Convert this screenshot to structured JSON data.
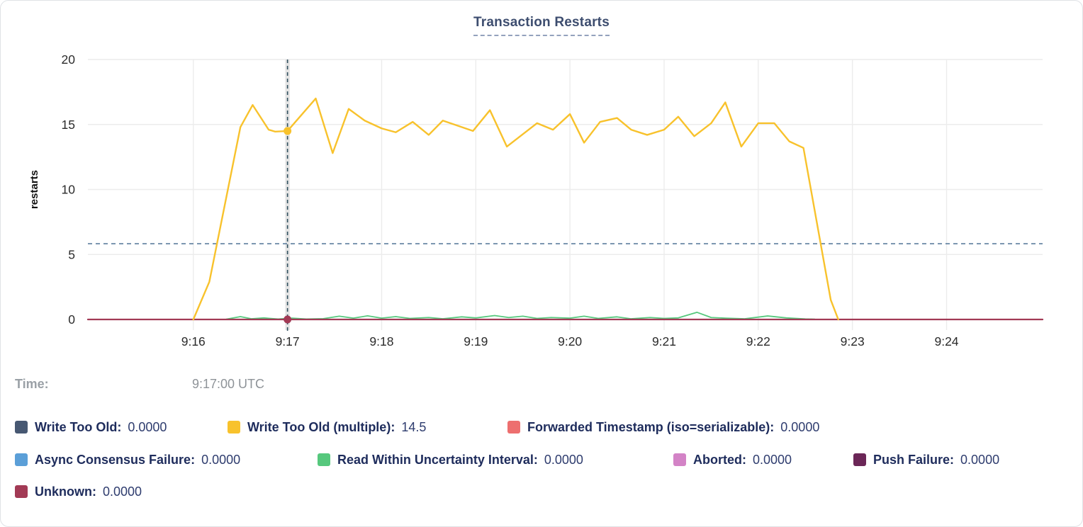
{
  "title": "Transaction Restarts",
  "tooltip": {
    "time_label": "Time:",
    "time_value": "9:17:00 UTC"
  },
  "chart_data": {
    "type": "line",
    "title": "Transaction Restarts",
    "ylabel": "restarts",
    "ylim": [
      0,
      20
    ],
    "yticks": [
      0,
      5,
      10,
      15,
      20
    ],
    "x_domain_minutes": [
      -1.12,
      9.02
    ],
    "xticks": [
      {
        "t": 0,
        "label": "9:16"
      },
      {
        "t": 1,
        "label": "9:17"
      },
      {
        "t": 2,
        "label": "9:18"
      },
      {
        "t": 3,
        "label": "9:19"
      },
      {
        "t": 4,
        "label": "9:20"
      },
      {
        "t": 5,
        "label": "9:21"
      },
      {
        "t": 6,
        "label": "9:22"
      },
      {
        "t": 7,
        "label": "9:23"
      },
      {
        "t": 8,
        "label": "9:24"
      }
    ],
    "avg_line_value": 5.83,
    "crosshair": {
      "t": 1.0,
      "time": "9:17:00 UTC",
      "hover_series": "Write Too Old (multiple)",
      "hover_value": 14.5
    },
    "grid": true,
    "series": [
      {
        "name": "Write Too Old",
        "color": "#475872",
        "width": 1.6,
        "points": [
          [
            -1.12,
            0
          ],
          [
            9.02,
            0
          ]
        ]
      },
      {
        "name": "Forwarded Timestamp (iso=serializable)",
        "color": "#ed6f6f",
        "width": 2.0,
        "points": [
          [
            -1.12,
            0
          ],
          [
            9.02,
            0
          ]
        ]
      },
      {
        "name": "Async Consensus Failure",
        "color": "#5b9fd8",
        "width": 1.6,
        "points": [
          [
            -1.12,
            0
          ],
          [
            9.02,
            0
          ]
        ]
      },
      {
        "name": "Aborted",
        "color": "#d383c6",
        "width": 1.6,
        "points": [
          [
            -1.12,
            0
          ],
          [
            9.02,
            0
          ]
        ]
      },
      {
        "name": "Push Failure",
        "color": "#6b2657",
        "width": 1.6,
        "points": [
          [
            -1.12,
            0
          ],
          [
            9.02,
            0
          ]
        ]
      },
      {
        "name": "Read Within Uncertainty Interval",
        "color": "#56c87d",
        "width": 1.8,
        "points": [
          [
            0.35,
            0.02
          ],
          [
            0.5,
            0.22
          ],
          [
            0.62,
            0.05
          ],
          [
            0.75,
            0.12
          ],
          [
            0.9,
            0.03
          ],
          [
            1.05,
            0.1
          ],
          [
            1.2,
            0.03
          ],
          [
            1.38,
            0.06
          ],
          [
            1.55,
            0.25
          ],
          [
            1.7,
            0.1
          ],
          [
            1.85,
            0.28
          ],
          [
            2.0,
            0.1
          ],
          [
            2.15,
            0.22
          ],
          [
            2.3,
            0.08
          ],
          [
            2.5,
            0.15
          ],
          [
            2.65,
            0.05
          ],
          [
            2.85,
            0.2
          ],
          [
            3.0,
            0.12
          ],
          [
            3.2,
            0.3
          ],
          [
            3.35,
            0.15
          ],
          [
            3.5,
            0.25
          ],
          [
            3.65,
            0.08
          ],
          [
            3.8,
            0.15
          ],
          [
            4.0,
            0.1
          ],
          [
            4.15,
            0.25
          ],
          [
            4.3,
            0.08
          ],
          [
            4.5,
            0.2
          ],
          [
            4.65,
            0.05
          ],
          [
            4.85,
            0.15
          ],
          [
            5.0,
            0.08
          ],
          [
            5.15,
            0.12
          ],
          [
            5.35,
            0.55
          ],
          [
            5.5,
            0.15
          ],
          [
            5.65,
            0.1
          ],
          [
            5.85,
            0.05
          ],
          [
            6.1,
            0.27
          ],
          [
            6.3,
            0.12
          ],
          [
            6.5,
            0.04
          ],
          [
            6.6,
            0.02
          ]
        ]
      },
      {
        "name": "Unknown",
        "color": "#a23a55",
        "width": 2.2,
        "points": [
          [
            -1.12,
            0
          ],
          [
            9.02,
            0
          ]
        ],
        "marker": {
          "t": 1.0,
          "v": 0
        }
      },
      {
        "name": "Write Too Old (multiple)",
        "color": "#f8c22c",
        "width": 2.4,
        "points": [
          [
            0,
            0
          ],
          [
            0.17,
            2.9
          ],
          [
            0.5,
            14.8
          ],
          [
            0.63,
            16.5
          ],
          [
            0.8,
            14.6
          ],
          [
            0.87,
            14.45
          ],
          [
            1.0,
            14.5
          ],
          [
            1.3,
            17.0
          ],
          [
            1.48,
            12.8
          ],
          [
            1.65,
            16.2
          ],
          [
            1.82,
            15.3
          ],
          [
            2.0,
            14.7
          ],
          [
            2.15,
            14.4
          ],
          [
            2.33,
            15.2
          ],
          [
            2.5,
            14.2
          ],
          [
            2.65,
            15.3
          ],
          [
            2.97,
            14.5
          ],
          [
            3.15,
            16.1
          ],
          [
            3.33,
            13.3
          ],
          [
            3.65,
            15.1
          ],
          [
            3.82,
            14.6
          ],
          [
            4.0,
            15.8
          ],
          [
            4.15,
            13.6
          ],
          [
            4.32,
            15.2
          ],
          [
            4.5,
            15.5
          ],
          [
            4.65,
            14.6
          ],
          [
            4.82,
            14.2
          ],
          [
            5.0,
            14.6
          ],
          [
            5.15,
            15.6
          ],
          [
            5.32,
            14.1
          ],
          [
            5.5,
            15.1
          ],
          [
            5.65,
            16.7
          ],
          [
            5.82,
            13.3
          ],
          [
            6.0,
            15.1
          ],
          [
            6.17,
            15.1
          ],
          [
            6.33,
            13.7
          ],
          [
            6.48,
            13.2
          ],
          [
            6.77,
            1.5
          ],
          [
            6.85,
            0
          ]
        ],
        "marker": {
          "t": 1.0,
          "v": 14.5
        }
      }
    ]
  },
  "legend": {
    "rows": [
      [
        {
          "slug": "write-too-old",
          "label": "Write Too Old:",
          "value": "0.0000",
          "color": "#475872"
        },
        {
          "slug": "write-too-old-multiple",
          "label": "Write Too Old (multiple):",
          "value": "14.5",
          "color": "#f8c22c"
        },
        {
          "slug": "forwarded-timestamp",
          "label": "Forwarded Timestamp (iso=serializable):",
          "value": "0.0000",
          "color": "#ed6f6f"
        }
      ],
      [
        {
          "slug": "async-consensus-failure",
          "label": "Async Consensus Failure:",
          "value": "0.0000",
          "color": "#5b9fd8"
        },
        {
          "slug": "read-within-uncertainty-interval",
          "label": "Read Within Uncertainty Interval:",
          "value": "0.0000",
          "color": "#56c87d"
        },
        {
          "slug": "aborted",
          "label": "Aborted:",
          "value": "0.0000",
          "color": "#d383c6"
        },
        {
          "slug": "push-failure",
          "label": "Push Failure:",
          "value": "0.0000",
          "color": "#6b2657"
        }
      ],
      [
        {
          "slug": "unknown",
          "label": "Unknown:",
          "value": "0.0000",
          "color": "#a23a55"
        }
      ]
    ]
  },
  "colors": {
    "grid": "#ececec",
    "hover_band": "#e4e4e4",
    "crosshair": "#31505f",
    "avg_line": "#5d7e9e",
    "axis_text": "#2b2b2b",
    "title_text": "#3d4d6f"
  }
}
